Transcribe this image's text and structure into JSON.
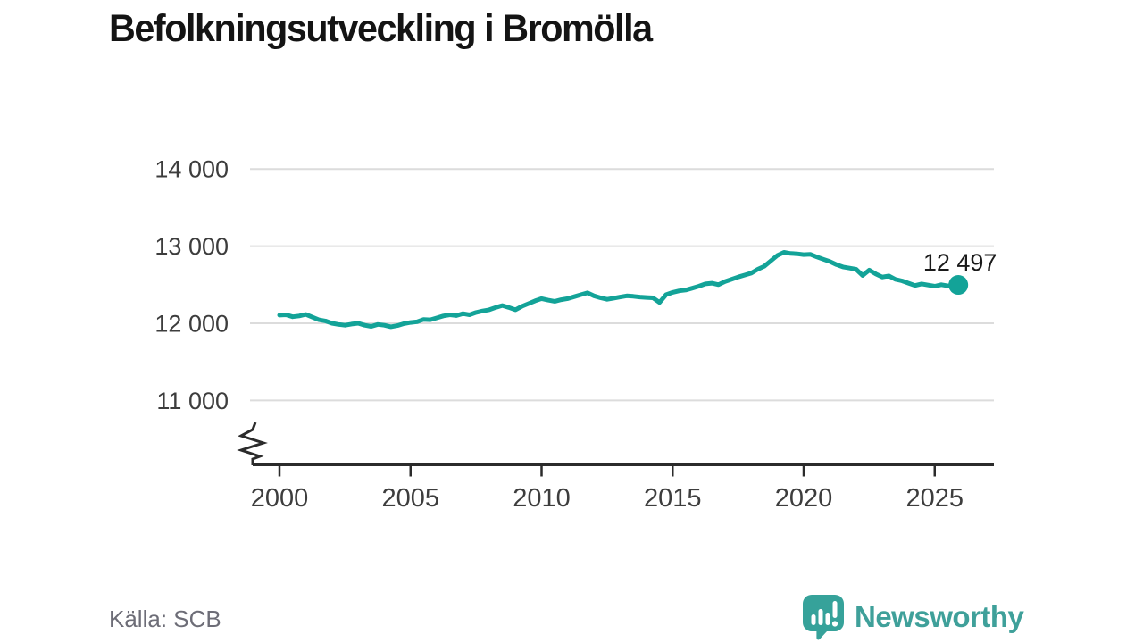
{
  "title": "Befolkningsutveckling i Bromölla",
  "source": "Källa: SCB",
  "branding": {
    "name": "Newsworthy",
    "logo_icon": "newsworthy-speech-bubble-bar-chart-icon",
    "color": "#3fa09a",
    "icon_color": "#36a29a"
  },
  "chart_data": {
    "type": "line",
    "title": "Befolkningsutveckling i Bromölla",
    "xlabel": "",
    "ylabel": "",
    "grid": "horizontal-only",
    "axis_break_at_y_axis_bottom": true,
    "xticks": [
      2000,
      2005,
      2010,
      2015,
      2020,
      2025
    ],
    "xtick_labels": [
      "2000",
      "2005",
      "2010",
      "2015",
      "2020",
      "2025"
    ],
    "yticks": [
      11000,
      12000,
      13000,
      14000
    ],
    "ytick_labels": [
      "11 000",
      "12 000",
      "13 000",
      "14 000"
    ],
    "xlim": [
      1999.0,
      2027.2
    ],
    "ylim": [
      10350,
      14400
    ],
    "end_label": "12 497",
    "end_value": 12497,
    "line_color": "#13a398",
    "gridline_color": "#dcdcdc",
    "axis_color": "#2b2b2b",
    "series": [
      {
        "name": "Befolkning i Bromölla",
        "points": [
          [
            2000.0,
            12105
          ],
          [
            2000.25,
            12110
          ],
          [
            2000.5,
            12085
          ],
          [
            2000.75,
            12095
          ],
          [
            2001.0,
            12115
          ],
          [
            2001.25,
            12080
          ],
          [
            2001.5,
            12045
          ],
          [
            2001.75,
            12030
          ],
          [
            2002.0,
            12000
          ],
          [
            2002.25,
            11985
          ],
          [
            2002.5,
            11975
          ],
          [
            2002.75,
            11990
          ],
          [
            2003.0,
            12000
          ],
          [
            2003.25,
            11975
          ],
          [
            2003.5,
            11960
          ],
          [
            2003.75,
            11985
          ],
          [
            2004.0,
            11975
          ],
          [
            2004.25,
            11955
          ],
          [
            2004.5,
            11970
          ],
          [
            2004.75,
            11995
          ],
          [
            2005.0,
            12010
          ],
          [
            2005.25,
            12020
          ],
          [
            2005.5,
            12050
          ],
          [
            2005.75,
            12045
          ],
          [
            2006.0,
            12070
          ],
          [
            2006.25,
            12095
          ],
          [
            2006.5,
            12110
          ],
          [
            2006.75,
            12100
          ],
          [
            2007.0,
            12125
          ],
          [
            2007.25,
            12110
          ],
          [
            2007.5,
            12140
          ],
          [
            2007.75,
            12160
          ],
          [
            2008.0,
            12175
          ],
          [
            2008.25,
            12205
          ],
          [
            2008.5,
            12230
          ],
          [
            2008.75,
            12205
          ],
          [
            2009.0,
            12175
          ],
          [
            2009.25,
            12220
          ],
          [
            2009.5,
            12255
          ],
          [
            2009.75,
            12290
          ],
          [
            2010.0,
            12320
          ],
          [
            2010.25,
            12300
          ],
          [
            2010.5,
            12285
          ],
          [
            2010.75,
            12305
          ],
          [
            2011.0,
            12320
          ],
          [
            2011.25,
            12345
          ],
          [
            2011.5,
            12370
          ],
          [
            2011.75,
            12395
          ],
          [
            2012.0,
            12355
          ],
          [
            2012.25,
            12330
          ],
          [
            2012.5,
            12310
          ],
          [
            2012.75,
            12325
          ],
          [
            2013.0,
            12340
          ],
          [
            2013.25,
            12355
          ],
          [
            2013.5,
            12350
          ],
          [
            2013.75,
            12340
          ],
          [
            2014.0,
            12335
          ],
          [
            2014.25,
            12330
          ],
          [
            2014.5,
            12270
          ],
          [
            2014.75,
            12370
          ],
          [
            2015.0,
            12400
          ],
          [
            2015.25,
            12420
          ],
          [
            2015.5,
            12430
          ],
          [
            2015.75,
            12455
          ],
          [
            2016.0,
            12480
          ],
          [
            2016.25,
            12510
          ],
          [
            2016.5,
            12520
          ],
          [
            2016.75,
            12500
          ],
          [
            2017.0,
            12540
          ],
          [
            2017.25,
            12570
          ],
          [
            2017.5,
            12600
          ],
          [
            2017.75,
            12625
          ],
          [
            2018.0,
            12650
          ],
          [
            2018.25,
            12700
          ],
          [
            2018.5,
            12740
          ],
          [
            2018.75,
            12810
          ],
          [
            2019.0,
            12880
          ],
          [
            2019.25,
            12920
          ],
          [
            2019.5,
            12905
          ],
          [
            2019.75,
            12900
          ],
          [
            2020.0,
            12890
          ],
          [
            2020.25,
            12895
          ],
          [
            2020.5,
            12860
          ],
          [
            2020.75,
            12830
          ],
          [
            2021.0,
            12800
          ],
          [
            2021.25,
            12760
          ],
          [
            2021.5,
            12730
          ],
          [
            2021.75,
            12715
          ],
          [
            2022.0,
            12700
          ],
          [
            2022.25,
            12620
          ],
          [
            2022.5,
            12690
          ],
          [
            2022.75,
            12640
          ],
          [
            2023.0,
            12600
          ],
          [
            2023.25,
            12615
          ],
          [
            2023.5,
            12570
          ],
          [
            2023.75,
            12550
          ],
          [
            2024.0,
            12520
          ],
          [
            2024.25,
            12490
          ],
          [
            2024.5,
            12510
          ],
          [
            2024.75,
            12495
          ],
          [
            2025.0,
            12480
          ],
          [
            2025.25,
            12500
          ],
          [
            2025.5,
            12485
          ],
          [
            2025.75,
            12492
          ],
          [
            2025.9,
            12497
          ]
        ]
      }
    ]
  }
}
